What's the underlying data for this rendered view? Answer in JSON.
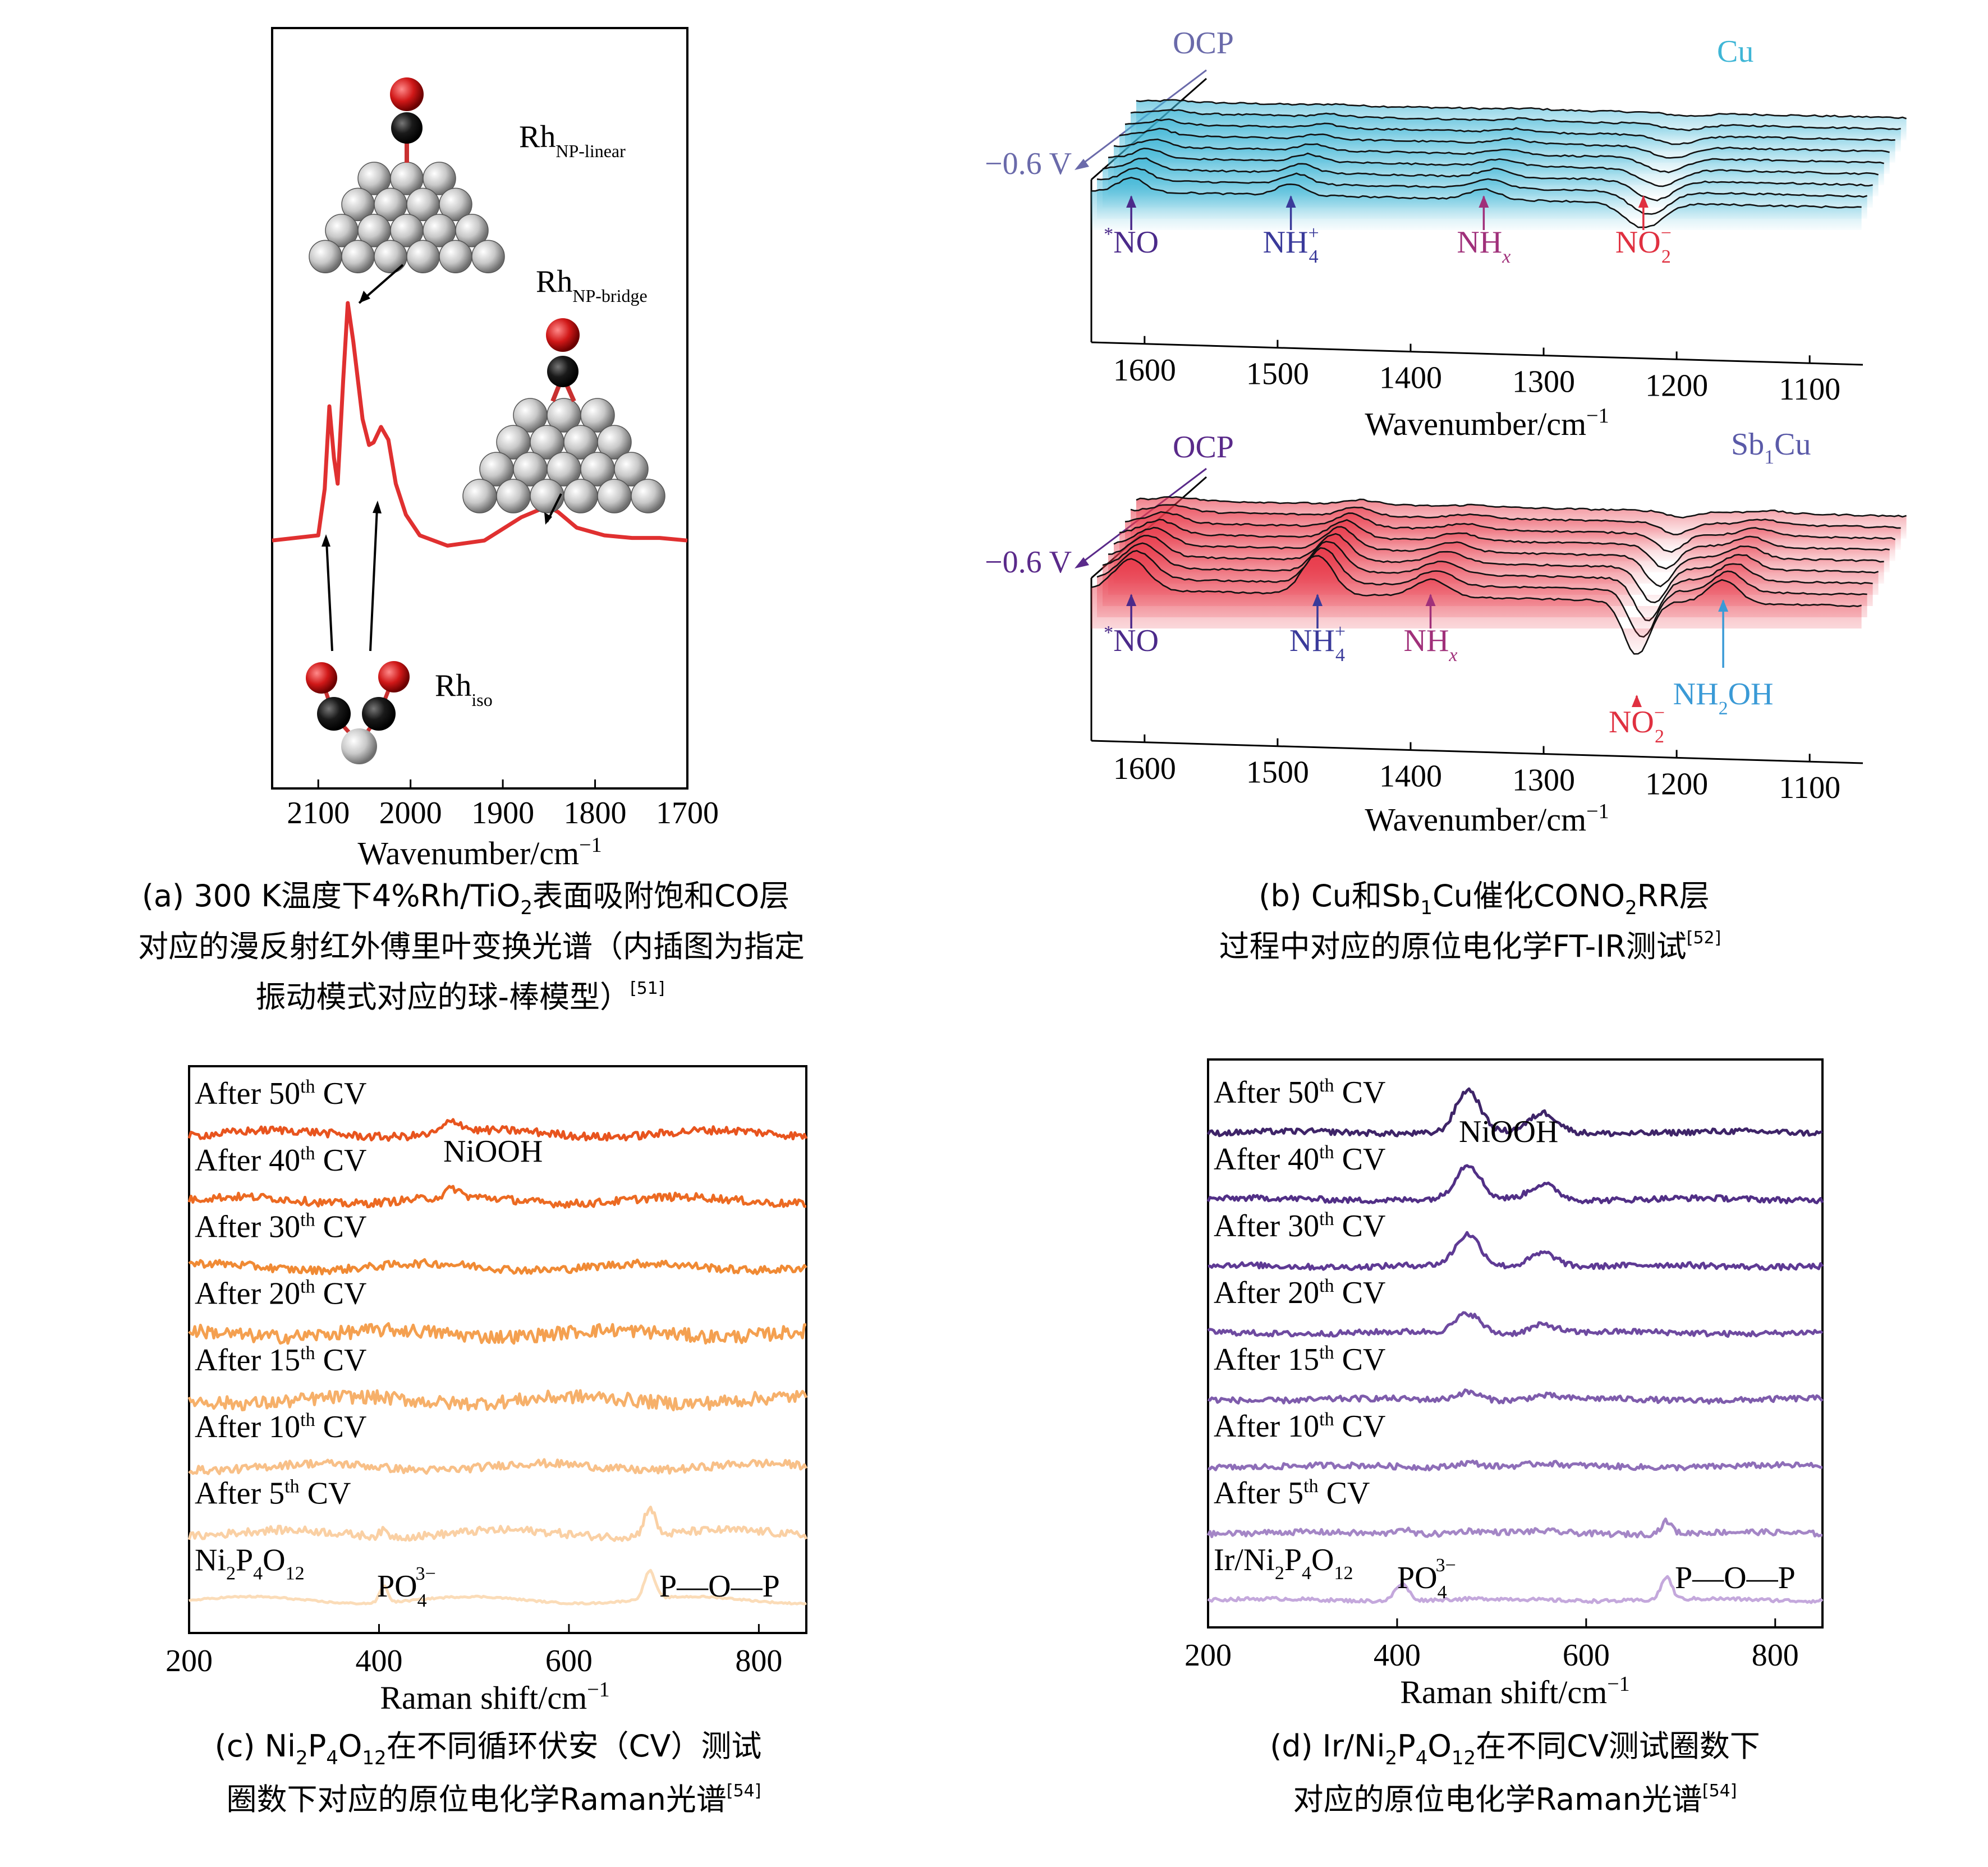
{
  "chart_data": [
    {
      "panel": "a",
      "type": "line",
      "xlabel": "Wavenumber/cm",
      "xlabel_sup": "−1",
      "xlim": [
        2150,
        1700
      ],
      "x_ticks": [
        "2100",
        "2000",
        "1900",
        "1800",
        "1700"
      ],
      "series": [
        {
          "name": "DRIFTS",
          "color": "#e03030",
          "x": [
            2150,
            2100,
            2093,
            2088,
            2083,
            2079,
            2073,
            2068,
            2062,
            2052,
            2045,
            2040,
            2032,
            2024,
            2016,
            2005,
            1990,
            1960,
            1920,
            1880,
            1860,
            1850,
            1840,
            1820,
            1790,
            1760,
            1730,
            1700
          ],
          "y": [
            0.08,
            0.1,
            0.28,
            0.6,
            0.4,
            0.3,
            0.7,
            1.0,
            0.85,
            0.55,
            0.45,
            0.46,
            0.52,
            0.47,
            0.3,
            0.18,
            0.1,
            0.06,
            0.08,
            0.17,
            0.2,
            0.21,
            0.19,
            0.13,
            0.1,
            0.09,
            0.09,
            0.08
          ]
        }
      ],
      "labels": [
        {
          "main": "Rh",
          "sub": "NP-linear"
        },
        {
          "main": "Rh",
          "sub": "NP-bridge"
        },
        {
          "main": "Rh",
          "sub": "iso"
        }
      ],
      "caption_lines": [
        "(a) 300 K温度下4%Rh/TiO",
        "2",
        "表面吸附饱和CO层",
        "对应的漫反射红外傅里叶变换光谱（内插图为指定",
        "振动模式对应的球-棒模型）",
        "[51]"
      ]
    },
    {
      "panel": "b",
      "type": "line",
      "subplots": [
        {
          "title": "Cu",
          "title_color": "#3fb6d6",
          "fill_color": "#3fb6d6",
          "xlabel": "Wavenumber/cm",
          "xlabel_sup": "−1",
          "x_ticks": [
            "1600",
            "1500",
            "1400",
            "1300",
            "1200",
            "1100"
          ],
          "axis_labels": [
            "OCP",
            "−0.6 V"
          ],
          "peaks": [
            {
              "label": "NO",
              "pre": "*",
              "sub": "",
              "sup": "",
              "x": 1610,
              "color": "#4b2a8a"
            },
            {
              "label": "NH",
              "pre": "",
              "sub": "4",
              "sup": "+",
              "x": 1490,
              "color": "#3a3a9a"
            },
            {
              "label": "NH",
              "pre": "",
              "sub": "x",
              "sup": "",
              "x": 1345,
              "color": "#a0307a"
            },
            {
              "label": "NO",
              "pre": "",
              "sub": "2",
              "sup": "−",
              "x": 1225,
              "color": "#e03040"
            }
          ]
        },
        {
          "title": "Sb",
          "title_sub": "1",
          "title_tail": "Cu",
          "title_color": "#5a5aa8",
          "fill_color": "#e83a4a",
          "xlabel": "Wavenumber/cm",
          "xlabel_sup": "−1",
          "x_ticks": [
            "1600",
            "1500",
            "1400",
            "1300",
            "1200",
            "1100"
          ],
          "axis_labels": [
            "OCP",
            "−0.6 V"
          ],
          "peaks": [
            {
              "label": "NO",
              "pre": "*",
              "sub": "",
              "sup": "",
              "x": 1610,
              "color": "#4b2a8a"
            },
            {
              "label": "NH",
              "pre": "",
              "sub": "4",
              "sup": "+",
              "x": 1470,
              "color": "#3a3a9a"
            },
            {
              "label": "NH",
              "pre": "",
              "sub": "x",
              "sup": "",
              "x": 1385,
              "color": "#a0307a"
            },
            {
              "label": "NO",
              "pre": "",
              "sub": "2",
              "sup": "−",
              "x": 1230,
              "color": "#e03040"
            },
            {
              "label": "NH",
              "pre": "",
              "sub": "2",
              "sup": "",
              "tail": "OH",
              "x": 1165,
              "color": "#3a9ad6"
            }
          ]
        }
      ],
      "caption_lines": [
        "(b) Cu和Sb",
        "1",
        "Cu催化CONO",
        "2",
        "RR层",
        "过程中对应的原位电化学FT-IR测试",
        "[52]"
      ]
    },
    {
      "panel": "c",
      "type": "line",
      "xlabel": "Raman shift/cm",
      "xlabel_sup": "−1",
      "xlim": [
        200,
        850
      ],
      "x_ticks": [
        "200",
        "400",
        "600",
        "800"
      ],
      "series_labels": [
        {
          "pre": "After 50",
          "sup": "th",
          "post": " CV",
          "color": "#e8541e"
        },
        {
          "pre": "After 40",
          "sup": "th",
          "post": " CV",
          "color": "#ec6a22"
        },
        {
          "pre": "After 30",
          "sup": "th",
          "post": " CV",
          "color": "#f08a34"
        },
        {
          "pre": "After 20",
          "sup": "th",
          "post": " CV",
          "color": "#f4a050"
        },
        {
          "pre": "After 15",
          "sup": "th",
          "post": " CV",
          "color": "#f6b06a"
        },
        {
          "pre": "After 10",
          "sup": "th",
          "post": " CV",
          "color": "#f8c088"
        },
        {
          "pre": "After 5",
          "sup": "th",
          "post": " CV",
          "color": "#fad0a4"
        },
        {
          "pre": "Ni",
          "sub1": "2",
          "mid": "P",
          "sub2": "4",
          "mid2": "O",
          "sub3": "12",
          "color": "#fbdcb8"
        }
      ],
      "annotations": [
        "NiOOH",
        "PO",
        "4",
        "3−",
        "P—O—P"
      ],
      "caption_lines": [
        "(c) Ni",
        "2",
        "P",
        "4",
        "O",
        "12",
        "在不同循环伏安（CV）测试",
        "圈数下对应的原位电化学Raman光谱",
        "[54]"
      ]
    },
    {
      "panel": "d",
      "type": "line",
      "xlabel": "Raman shift/cm",
      "xlabel_sup": "−1",
      "xlim": [
        200,
        850
      ],
      "x_ticks": [
        "200",
        "400",
        "600",
        "800"
      ],
      "series_labels": [
        {
          "pre": "After 50",
          "sup": "th",
          "post": " CV",
          "color": "#3e2468"
        },
        {
          "pre": "After 40",
          "sup": "th",
          "post": " CV",
          "color": "#512f86"
        },
        {
          "pre": "After 30",
          "sup": "th",
          "post": " CV",
          "color": "#5e3a94"
        },
        {
          "pre": "After 20",
          "sup": "th",
          "post": " CV",
          "color": "#6e4aa0"
        },
        {
          "pre": "After 15",
          "sup": "th",
          "post": " CV",
          "color": "#7e5cac"
        },
        {
          "pre": "After 10",
          "sup": "th",
          "post": " CV",
          "color": "#8e6eb8"
        },
        {
          "pre": "After 5",
          "sup": "th",
          "post": " CV",
          "color": "#a486c6"
        },
        {
          "pre": "Ir/Ni",
          "sub1": "2",
          "mid": "P",
          "sub2": "4",
          "mid2": "O",
          "sub3": "12",
          "color": "#c4a8dc"
        }
      ],
      "annotations": [
        "NiOOH",
        "PO",
        "4",
        "3−",
        "P—O—P"
      ],
      "caption_lines": [
        "(d) Ir/Ni",
        "2",
        "P",
        "4",
        "O",
        "12",
        "在不同CV测试圈数下",
        "对应的原位电化学Raman光谱",
        "[54]"
      ]
    }
  ]
}
